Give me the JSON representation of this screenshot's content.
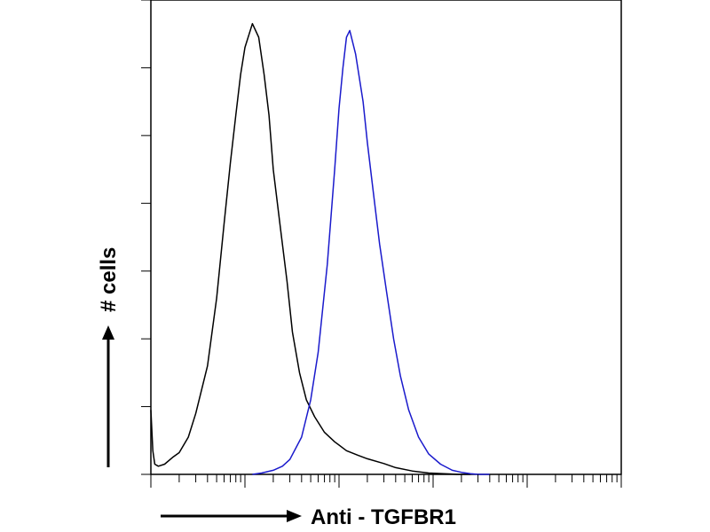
{
  "chart_data": {
    "type": "line",
    "title": "",
    "xlabel": "Anti - TGFBR1",
    "ylabel": "# cells",
    "x_scale": "log",
    "xlim": [
      1,
      100000
    ],
    "ylim": [
      0,
      7
    ],
    "y_ticks": [
      0,
      1,
      2,
      3,
      4,
      5,
      6,
      7
    ],
    "grid": false,
    "legend": "none",
    "series": [
      {
        "color": "#000000",
        "x": [
          1,
          1.05,
          1.1,
          1.2,
          1.4,
          1.7,
          2,
          2.5,
          3,
          4,
          5,
          6,
          7,
          8,
          9,
          10,
          12,
          14,
          16,
          18,
          20,
          24,
          28,
          32,
          38,
          45,
          55,
          70,
          90,
          120,
          160,
          200,
          300,
          400,
          600,
          900,
          1300,
          1800,
          2500
        ],
        "y": [
          0.95,
          0.35,
          0.15,
          0.12,
          0.15,
          0.25,
          0.32,
          0.55,
          0.9,
          1.6,
          2.6,
          3.7,
          4.6,
          5.3,
          5.9,
          6.3,
          6.65,
          6.45,
          5.9,
          5.3,
          4.5,
          3.6,
          2.85,
          2.1,
          1.5,
          1.1,
          0.85,
          0.62,
          0.48,
          0.35,
          0.28,
          0.23,
          0.16,
          0.1,
          0.05,
          0.02,
          0.01,
          0,
          0
        ]
      },
      {
        "color": "#1a1acc",
        "x": [
          12,
          15,
          20,
          25,
          30,
          40,
          50,
          60,
          75,
          90,
          100,
          110,
          120,
          130,
          150,
          180,
          200,
          230,
          270,
          320,
          380,
          450,
          550,
          700,
          900,
          1200,
          1600,
          2000,
          2500,
          3000,
          3500,
          4000
        ],
        "y": [
          0,
          0.02,
          0.06,
          0.12,
          0.22,
          0.55,
          1.1,
          1.8,
          3.1,
          4.5,
          5.4,
          6.0,
          6.45,
          6.55,
          6.2,
          5.5,
          4.9,
          4.2,
          3.4,
          2.7,
          2.0,
          1.45,
          0.95,
          0.55,
          0.3,
          0.15,
          0.06,
          0.03,
          0.01,
          0,
          0,
          0
        ]
      }
    ]
  }
}
